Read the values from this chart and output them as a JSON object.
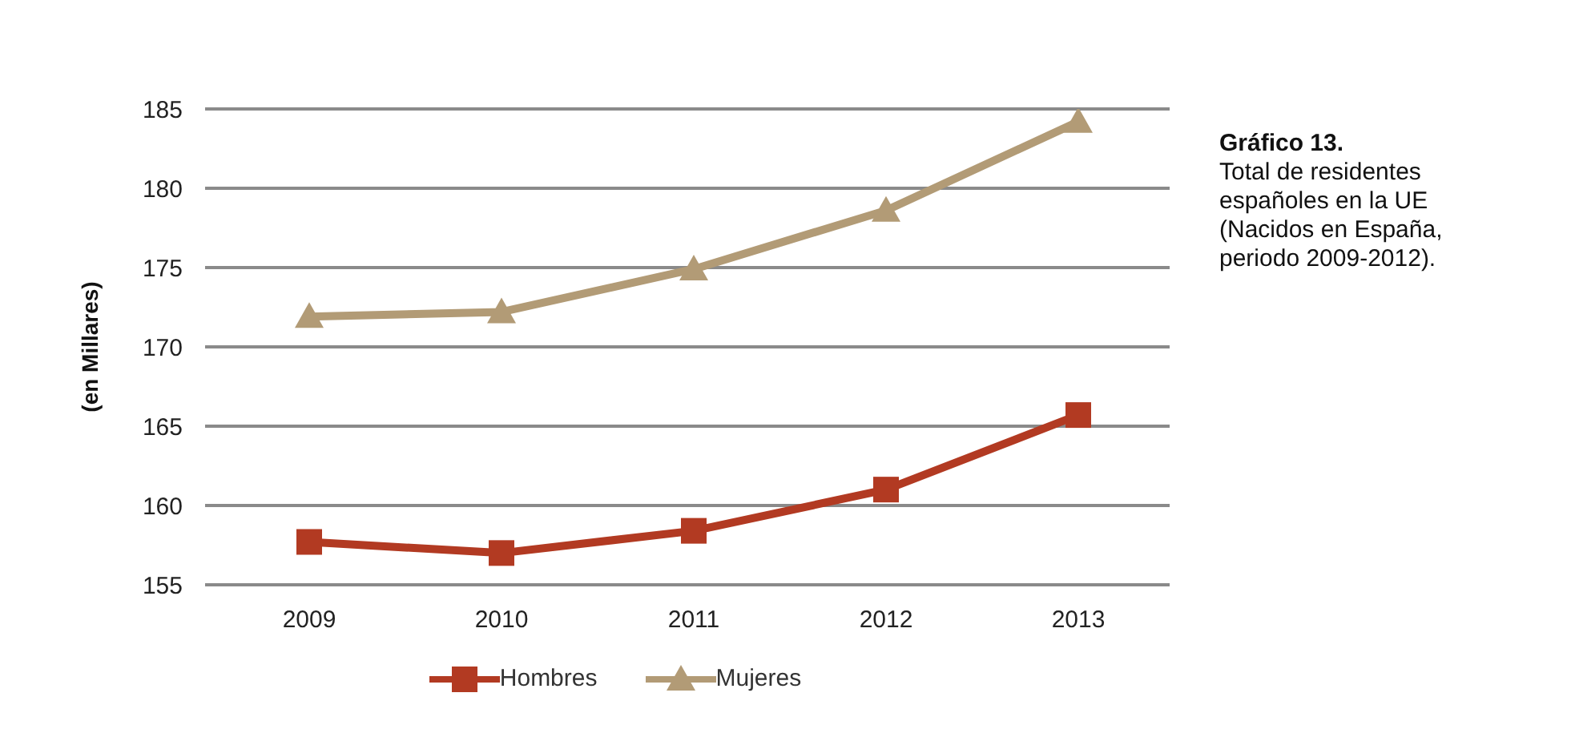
{
  "chart_data": {
    "type": "line",
    "title": "Gráfico 13.",
    "subtitle": "Total de residentes españoles en la UE  (Nacidos en España, periodo 2009-2012).",
    "ylabel": "(en Millares)",
    "categories": [
      "2009",
      "2010",
      "2011",
      "2012",
      "2013"
    ],
    "series": [
      {
        "name": "Hombres",
        "color": "#b23a22",
        "marker": "square",
        "values": [
          157.7,
          157.0,
          158.4,
          161.0,
          165.7
        ]
      },
      {
        "name": "Mujeres",
        "color": "#b29b76",
        "marker": "triangle",
        "values": [
          171.9,
          172.2,
          174.9,
          178.6,
          184.2
        ]
      }
    ],
    "ylim": [
      155,
      185
    ],
    "yticks": [
      155,
      160,
      165,
      170,
      175,
      180,
      185
    ],
    "grid": "y",
    "legend": "bottom",
    "line_style": "solid"
  }
}
